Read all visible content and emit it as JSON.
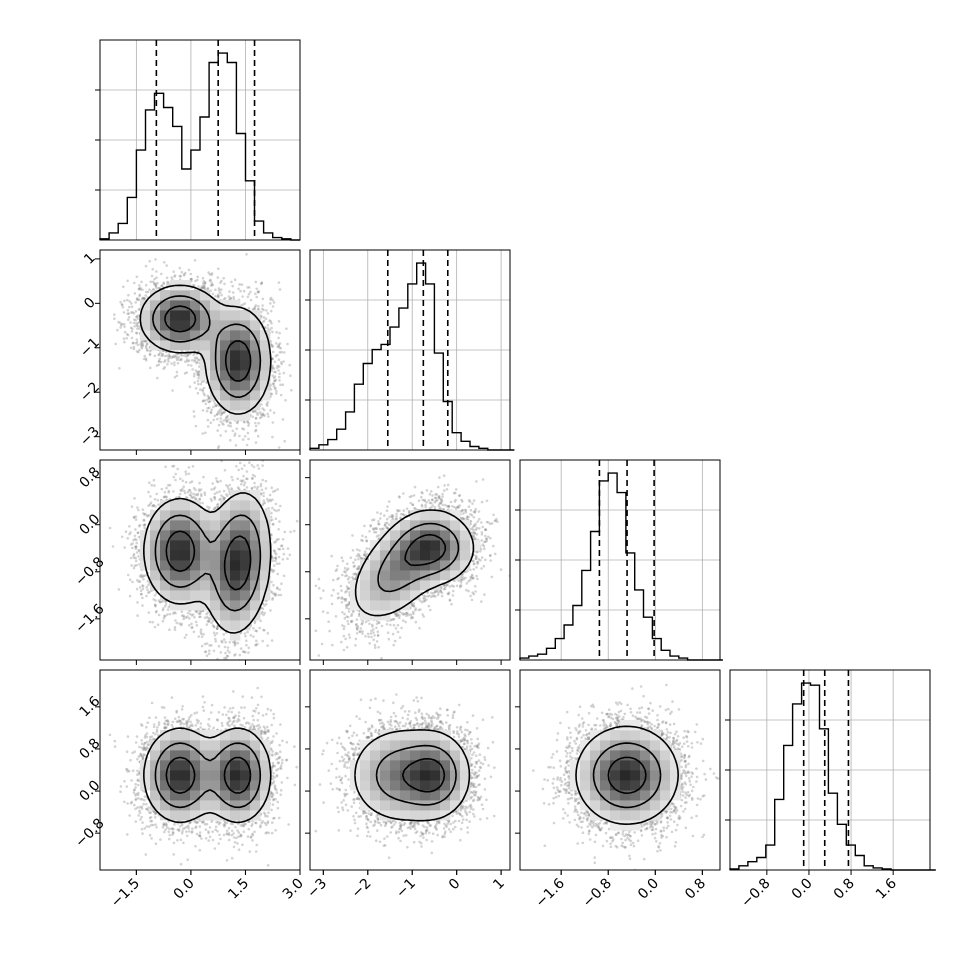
{
  "chart_data": {
    "type": "corner",
    "variables": 4,
    "ranges": [
      [
        -2.5,
        3.0
      ],
      [
        -3.3,
        1.2
      ],
      [
        -2.3,
        1.1
      ],
      [
        -1.5,
        2.3
      ]
    ],
    "tick_values": [
      [
        -1.5,
        0.0,
        1.5,
        3.0
      ],
      [
        -3,
        -2,
        -1,
        0,
        1
      ],
      [
        -1.6,
        -0.8,
        0.0,
        0.8
      ],
      [
        -0.8,
        0.0,
        0.8,
        1.6
      ]
    ],
    "tick_labels": [
      [
        "−1.5",
        "0.0",
        "1.5",
        "3.0"
      ],
      [
        "−3",
        "−2",
        "−1",
        "0",
        "1"
      ],
      [
        "−1.6",
        "−0.8",
        "0.0",
        "0.8"
      ],
      [
        "−0.8",
        "0.0",
        "0.8",
        "1.6"
      ]
    ],
    "quantiles": [
      [
        -0.95,
        0.75,
        1.75
      ],
      [
        -1.55,
        -0.75,
        -0.2
      ],
      [
        -0.95,
        -0.48,
        -0.02
      ],
      [
        -0.1,
        0.3,
        0.75
      ]
    ],
    "histograms": [
      {
        "bin_edges_start": -2.5,
        "bin_width": 0.25,
        "counts": [
          0.5,
          3,
          7,
          18,
          38,
          55,
          62,
          56,
          48,
          30,
          38,
          52,
          75,
          79,
          75,
          45,
          25,
          8,
          3,
          1,
          0.5,
          0
        ]
      },
      {
        "bin_edges_start": -3.3,
        "bin_width": 0.2,
        "counts": [
          1,
          3,
          6,
          12,
          22,
          38,
          50,
          58,
          61,
          71,
          82,
          96,
          108,
          96,
          56,
          28,
          10,
          5,
          2,
          1,
          0,
          0,
          0
        ]
      },
      {
        "bin_edges_start": -2.3,
        "bin_width": 0.15,
        "counts": [
          1,
          2,
          3,
          6,
          11,
          18,
          28,
          46,
          66,
          92,
          96,
          86,
          55,
          36,
          22,
          11,
          5,
          2,
          1,
          0,
          0,
          0,
          0
        ]
      },
      {
        "bin_edges_start": -1.5,
        "bin_width": 0.17,
        "counts": [
          0.5,
          2,
          4,
          6,
          12,
          34,
          60,
          80,
          90,
          89,
          68,
          37,
          22,
          12,
          7,
          2,
          1,
          0.5,
          0,
          0,
          0,
          0,
          0
        ]
      }
    ],
    "pairs": [
      {
        "x": 0,
        "y": 1,
        "components": [
          {
            "cx": -0.3,
            "cy": -0.35,
            "sx": 0.55,
            "sy": 0.38,
            "rho": 0.0,
            "w": 1.0
          },
          {
            "cx": 1.3,
            "cy": -1.3,
            "sx": 0.45,
            "sy": 0.6,
            "rho": 0.0,
            "w": 1.0
          }
        ],
        "contour_levels": [
          0.14,
          0.4,
          0.75
        ]
      },
      {
        "x": 0,
        "y": 2,
        "components": [
          {
            "cx": -0.3,
            "cy": -0.45,
            "sx": 0.5,
            "sy": 0.45,
            "rho": 0.0,
            "w": 1.0
          },
          {
            "cx": 1.3,
            "cy": -0.65,
            "sx": 0.45,
            "sy": 0.6,
            "rho": 0.15,
            "w": 1.0
          }
        ],
        "contour_levels": [
          0.14,
          0.4,
          0.75
        ]
      },
      {
        "x": 1,
        "y": 2,
        "components": [
          {
            "cx": -0.5,
            "cy": -0.4,
            "sx": 0.45,
            "sy": 0.3,
            "rho": 0.0,
            "w": 1.0
          },
          {
            "cx": -1.3,
            "cy": -0.75,
            "sx": 0.55,
            "sy": 0.45,
            "rho": 0.5,
            "w": 0.75
          }
        ],
        "contour_levels": [
          0.12,
          0.4,
          0.75
        ]
      },
      {
        "x": 0,
        "y": 3,
        "components": [
          {
            "cx": -0.3,
            "cy": 0.3,
            "sx": 0.5,
            "sy": 0.45,
            "rho": 0.0,
            "w": 1.0
          },
          {
            "cx": 1.3,
            "cy": 0.3,
            "sx": 0.45,
            "sy": 0.45,
            "rho": 0.0,
            "w": 1.0
          }
        ],
        "contour_levels": [
          0.14,
          0.4,
          0.75
        ]
      },
      {
        "x": 1,
        "y": 3,
        "components": [
          {
            "cx": -0.5,
            "cy": 0.3,
            "sx": 0.4,
            "sy": 0.4,
            "rho": 0.0,
            "w": 1.0
          },
          {
            "cx": -1.3,
            "cy": 0.3,
            "sx": 0.55,
            "sy": 0.45,
            "rho": 0.0,
            "w": 0.8
          }
        ],
        "contour_levels": [
          0.12,
          0.4,
          0.75
        ]
      },
      {
        "x": 2,
        "y": 3,
        "components": [
          {
            "cx": -0.48,
            "cy": 0.3,
            "sx": 0.42,
            "sy": 0.45,
            "rho": 0.0,
            "w": 1.0
          }
        ],
        "contour_levels": [
          0.12,
          0.4,
          0.75
        ]
      }
    ],
    "colors": {
      "line": "#000000",
      "density": "#000000",
      "grid": "#b0b0b0",
      "points": "#808080"
    }
  }
}
